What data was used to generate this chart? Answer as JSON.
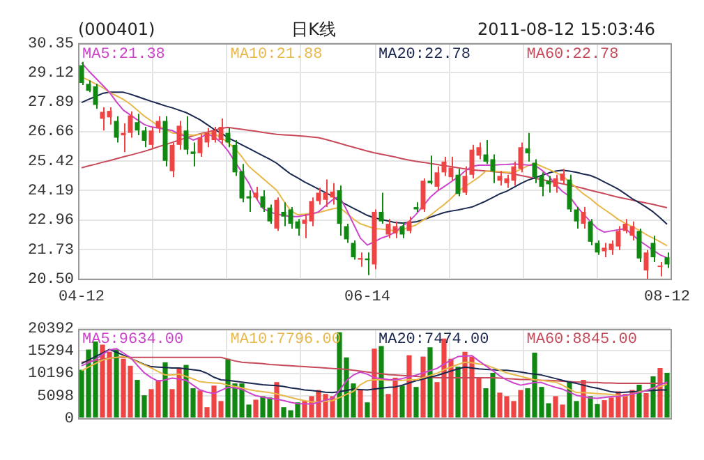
{
  "chart_data": [
    {
      "type": "candlestick",
      "title": "(000401)",
      "subtitle": "日K线",
      "annotations": [
        "2011-08-12 15:03:46"
      ],
      "categories": [
        "04-12",
        null,
        null,
        null,
        null,
        null,
        null,
        null,
        null,
        null,
        null,
        null,
        null,
        null,
        null,
        null,
        null,
        null,
        null,
        null,
        null,
        null,
        null,
        null,
        null,
        null,
        null,
        null,
        null,
        null,
        null,
        null,
        null,
        null,
        null,
        null,
        null,
        null,
        null,
        null,
        null,
        "06-14",
        null,
        null,
        null,
        null,
        null,
        null,
        null,
        null,
        null,
        null,
        null,
        null,
        null,
        null,
        null,
        null,
        null,
        null,
        null,
        null,
        null,
        null,
        null,
        null,
        null,
        null,
        null,
        null,
        null,
        null,
        null,
        null,
        null,
        null,
        null,
        null,
        null,
        null,
        null,
        null,
        null,
        null,
        "08-12"
      ],
      "ylim": [
        20.5,
        30.35
      ],
      "yticks": [
        {
          "value": 20.5,
          "label": "20.50"
        },
        21.73,
        22.96,
        24.19,
        25.42,
        26.66,
        27.89,
        29.12,
        30.35
      ],
      "grid": true,
      "legend": "top",
      "series": [
        {
          "colors": [
            "#118811",
            "#118811",
            "#118811",
            "#ee4444",
            "#ee4444",
            "#118811",
            "#ee4444",
            "#ee4444",
            "#118811",
            "#118811",
            "#ee4444",
            "#ee4444",
            "#118811",
            "#ee4444",
            "#ee4444",
            "#118811",
            "#118811",
            "#ee4444",
            "#ee4444",
            "#ee4444",
            "#ee4444",
            "#118811",
            "#118811",
            "#118811",
            "#118811",
            "#ee4444",
            "#118811",
            "#118811",
            "#ee4444",
            "#118811",
            "#118811",
            "#118811",
            "#ee4444",
            "#ee4444",
            "#ee4444",
            "#ee4444",
            "#ee4444",
            "#118811",
            "#118811",
            "#118811",
            "#ee4444",
            "#118811",
            "#ee4444",
            "#118811",
            "#ee4444",
            "#ee4444",
            "#118811",
            "#ee4444",
            "#118811",
            "#ee4444",
            "#118811",
            "#ee4444",
            "#ee4444",
            "#ee4444",
            "#118811",
            "#ee4444",
            "#ee4444",
            "#ee4444",
            "#118811",
            "#118811",
            "#ee4444",
            "#ee4444",
            "#ee4444",
            "#ee4444",
            "#118811",
            "#118811",
            "#118811",
            "#118811",
            "#ee4444",
            "#ee4444",
            "#118811",
            "#118811",
            "#ee4444",
            "#118811",
            "#118811",
            "#ee4444",
            "#ee4444",
            "#ee4444",
            "#ee4444",
            "#ee4444",
            "#118811",
            "#ee4444",
            "#118811",
            "#ee4444",
            "#118811"
          ],
          "ohlc": [
            [
              29.43,
              29.57,
              28.6,
              28.69
            ],
            [
              28.65,
              28.8,
              28.3,
              28.36
            ],
            [
              28.55,
              28.65,
              27.6,
              27.77
            ],
            [
              27.19,
              27.67,
              26.7,
              27.48
            ],
            [
              27.25,
              27.67,
              26.95,
              27.52
            ],
            [
              27.1,
              27.3,
              26.2,
              26.4
            ],
            [
              26.5,
              27.0,
              25.8,
              26.6
            ],
            [
              26.6,
              27.5,
              26.4,
              27.33
            ],
            [
              27.05,
              27.4,
              26.5,
              26.7
            ],
            [
              26.7,
              26.85,
              26.0,
              26.27
            ],
            [
              26.1,
              26.85,
              25.95,
              26.7
            ],
            [
              26.8,
              27.3,
              26.6,
              27.1
            ],
            [
              27.1,
              27.3,
              25.2,
              25.43
            ],
            [
              25.0,
              26.2,
              24.75,
              26.1
            ],
            [
              26.1,
              27.1,
              25.9,
              26.9
            ],
            [
              26.7,
              27.3,
              25.7,
              25.9
            ],
            [
              25.82,
              26.2,
              25.2,
              25.72
            ],
            [
              25.75,
              26.55,
              25.6,
              26.4
            ],
            [
              26.2,
              26.8,
              26.0,
              26.6
            ],
            [
              26.3,
              26.85,
              26.2,
              26.7
            ],
            [
              26.3,
              27.2,
              26.1,
              26.85
            ],
            [
              26.6,
              26.8,
              26.0,
              26.2
            ],
            [
              26.1,
              26.3,
              24.8,
              24.95
            ],
            [
              25.0,
              25.3,
              23.7,
              23.86
            ],
            [
              23.95,
              24.2,
              23.3,
              23.86
            ],
            [
              23.9,
              24.35,
              23.8,
              24.1
            ],
            [
              23.95,
              24.2,
              23.3,
              23.48
            ],
            [
              23.48,
              23.6,
              22.8,
              22.9
            ],
            [
              22.6,
              23.9,
              22.5,
              23.8
            ],
            [
              23.3,
              23.7,
              22.7,
              23.1
            ],
            [
              23.4,
              23.5,
              22.6,
              22.8
            ],
            [
              22.9,
              23.0,
              22.3,
              22.6
            ],
            [
              22.8,
              23.2,
              22.2,
              22.97
            ],
            [
              22.9,
              23.9,
              22.7,
              23.75
            ],
            [
              23.75,
              24.3,
              23.6,
              24.1
            ],
            [
              23.8,
              24.65,
              23.5,
              24.1
            ],
            [
              23.9,
              24.5,
              23.6,
              24.15
            ],
            [
              24.2,
              24.4,
              22.3,
              22.8
            ],
            [
              22.7,
              22.8,
              22.0,
              22.15
            ],
            [
              22.0,
              22.1,
              21.3,
              21.4
            ],
            [
              21.3,
              21.6,
              21.0,
              21.37
            ],
            [
              21.35,
              21.6,
              20.65,
              21.28
            ],
            [
              21.1,
              23.4,
              20.9,
              23.3
            ],
            [
              23.3,
              24.1,
              22.8,
              22.9
            ],
            [
              22.35,
              23.0,
              22.2,
              22.8
            ],
            [
              22.4,
              22.9,
              22.2,
              22.7
            ],
            [
              22.7,
              22.85,
              22.2,
              22.35
            ],
            [
              22.5,
              23.1,
              22.4,
              22.9
            ],
            [
              23.5,
              23.7,
              23.3,
              23.4
            ],
            [
              23.4,
              24.7,
              23.3,
              24.6
            ],
            [
              24.6,
              25.65,
              24.45,
              24.5
            ],
            [
              24.35,
              25.2,
              24.2,
              24.95
            ],
            [
              24.95,
              25.6,
              24.8,
              25.4
            ],
            [
              24.75,
              25.6,
              24.6,
              25.15
            ],
            [
              24.85,
              25.1,
              23.95,
              24.05
            ],
            [
              24.1,
              25.2,
              24.0,
              24.8
            ],
            [
              24.85,
              26.1,
              24.7,
              25.9
            ],
            [
              25.65,
              26.2,
              25.5,
              26.0
            ],
            [
              25.7,
              26.3,
              25.3,
              25.4
            ],
            [
              25.5,
              25.7,
              24.5,
              25.0
            ],
            [
              24.6,
              25.0,
              24.4,
              24.8
            ],
            [
              24.5,
              24.85,
              24.3,
              24.7
            ],
            [
              24.6,
              25.4,
              24.4,
              25.2
            ],
            [
              25.1,
              26.2,
              24.95,
              26.0
            ],
            [
              25.95,
              26.6,
              25.4,
              25.75
            ],
            [
              25.35,
              25.5,
              24.5,
              24.75
            ],
            [
              24.8,
              24.95,
              23.95,
              24.35
            ],
            [
              24.6,
              24.8,
              24.1,
              24.45
            ],
            [
              24.35,
              24.85,
              24.1,
              24.7
            ],
            [
              24.6,
              25.1,
              24.45,
              24.9
            ],
            [
              24.65,
              24.85,
              23.3,
              23.4
            ],
            [
              23.4,
              23.5,
              22.6,
              22.9
            ],
            [
              22.8,
              23.5,
              22.6,
              23.3
            ],
            [
              22.9,
              23.0,
              21.9,
              22.05
            ],
            [
              22.0,
              22.1,
              21.5,
              21.6
            ],
            [
              21.65,
              22.0,
              21.4,
              21.8
            ],
            [
              21.7,
              22.1,
              21.5,
              21.97
            ],
            [
              21.85,
              22.7,
              21.7,
              22.5
            ],
            [
              22.5,
              23.0,
              22.4,
              22.8
            ],
            [
              22.3,
              22.9,
              22.1,
              22.7
            ],
            [
              22.5,
              22.6,
              21.2,
              21.35
            ],
            [
              20.85,
              21.7,
              20.5,
              21.6
            ],
            [
              22.0,
              22.3,
              21.2,
              21.4
            ],
            [
              21.0,
              21.2,
              20.6,
              21.05
            ],
            [
              21.4,
              21.6,
              20.95,
              21.1
            ]
          ]
        },
        {
          "type": "line",
          "name": "MA5:21.38",
          "color": "#cc44cc",
          "values": [
            29.53,
            29.2,
            28.9,
            28.6,
            28.3,
            27.9,
            27.55,
            27.35,
            27.15,
            26.95,
            26.85,
            26.8,
            26.75,
            26.7,
            26.55,
            26.45,
            26.3,
            26.4,
            26.55,
            26.45,
            26.2,
            25.85,
            25.4,
            24.95,
            24.5,
            23.9,
            23.45,
            23.3,
            23.2,
            23.15,
            23.1,
            23.1,
            23.15,
            23.2,
            23.3,
            23.55,
            23.8,
            23.95,
            23.4,
            22.8,
            22.2,
            21.91,
            22.05,
            22.2,
            22.3,
            22.45,
            22.7,
            22.9,
            23.2,
            23.55,
            23.9,
            24.16,
            24.35,
            24.55,
            24.75,
            25.0,
            25.2,
            25.25,
            25.25,
            25.25,
            25.27,
            25.28,
            25.3,
            25.28,
            25.26,
            25.25,
            25.05,
            24.8,
            24.45,
            24.15,
            23.95,
            23.55,
            23.2,
            22.9,
            22.6,
            22.45,
            22.5,
            22.55,
            22.6,
            22.35,
            22.1,
            21.9,
            21.7,
            21.5,
            21.38
          ]
        },
        {
          "type": "line",
          "name": "MA10:21.88",
          "color": "#e8b84a",
          "values": [
            28.94,
            28.8,
            28.65,
            28.5,
            28.3,
            28.15,
            28.0,
            27.8,
            27.55,
            27.3,
            27.1,
            26.9,
            26.75,
            26.6,
            26.57,
            26.53,
            26.5,
            26.54,
            26.58,
            26.58,
            26.4,
            26.2,
            25.95,
            25.6,
            25.2,
            24.95,
            24.7,
            24.45,
            24.2,
            23.75,
            23.35,
            23.18,
            23.2,
            23.23,
            23.27,
            23.35,
            23.42,
            23.48,
            23.25,
            23.0,
            22.8,
            22.7,
            22.6,
            22.58,
            22.55,
            22.5,
            22.55,
            22.65,
            22.75,
            22.95,
            23.15,
            23.38,
            23.6,
            23.85,
            24.15,
            24.35,
            24.55,
            24.75,
            25.0,
            25.0,
            24.98,
            24.96,
            24.94,
            25.08,
            25.22,
            25.33,
            25.2,
            25.08,
            24.95,
            24.8,
            24.55,
            24.3,
            24.05,
            23.85,
            23.6,
            23.4,
            23.2,
            22.98,
            22.82,
            22.68,
            22.53,
            22.35,
            22.2,
            22.05,
            21.88
          ]
        },
        {
          "type": "line",
          "name": "MA20:22.78",
          "color": "#1a2850",
          "values": [
            27.87,
            28.0,
            28.12,
            28.25,
            28.3,
            28.3,
            28.3,
            28.22,
            28.12,
            28.02,
            27.92,
            27.83,
            27.73,
            27.65,
            27.55,
            27.45,
            27.3,
            27.15,
            26.95,
            26.75,
            26.6,
            26.4,
            26.25,
            26.1,
            25.95,
            25.8,
            25.65,
            25.5,
            25.33,
            25.1,
            24.88,
            24.72,
            24.55,
            24.4,
            24.25,
            24.1,
            23.95,
            23.75,
            23.6,
            23.45,
            23.3,
            23.15,
            23.05,
            22.98,
            22.92,
            22.85,
            22.83,
            22.85,
            22.88,
            22.97,
            23.07,
            23.17,
            23.27,
            23.33,
            23.38,
            23.44,
            23.5,
            23.62,
            23.75,
            23.9,
            24.05,
            24.16,
            24.32,
            24.48,
            24.62,
            24.72,
            24.82,
            24.92,
            25.0,
            25.04,
            25.0,
            24.95,
            24.88,
            24.82,
            24.7,
            24.55,
            24.4,
            24.25,
            24.05,
            23.85,
            23.68,
            23.5,
            23.3,
            23.05,
            22.78
          ]
        },
        {
          "type": "line",
          "name": "MA60:22.78",
          "color": "#c84a5a",
          "values": [
            25.14,
            25.22,
            25.29,
            25.37,
            25.44,
            25.52,
            25.6,
            25.67,
            25.75,
            25.83,
            25.92,
            26.02,
            26.11,
            26.2,
            26.3,
            26.39,
            26.48,
            26.56,
            26.63,
            26.71,
            26.79,
            26.83,
            26.79,
            26.75,
            26.71,
            26.67,
            26.62,
            26.58,
            26.54,
            26.52,
            26.5,
            26.48,
            26.46,
            26.43,
            26.4,
            26.33,
            26.25,
            26.17,
            26.08,
            26.0,
            25.92,
            25.84,
            25.77,
            25.71,
            25.65,
            25.59,
            25.52,
            25.46,
            25.41,
            25.37,
            25.32,
            25.28,
            25.23,
            25.19,
            25.14,
            25.1,
            25.05,
            25.03,
            25.01,
            24.98,
            24.96,
            24.94,
            24.88,
            24.82,
            24.76,
            24.7,
            24.65,
            24.59,
            24.53,
            24.47,
            24.41,
            24.35,
            24.28,
            24.2,
            24.13,
            24.06,
            23.98,
            23.91,
            23.85,
            23.79,
            23.73,
            23.67,
            23.61,
            23.54,
            23.47
          ]
        }
      ]
    },
    {
      "type": "bar",
      "tick_labels": "y",
      "categories": [
        null,
        null,
        null,
        null,
        null,
        null,
        null,
        null,
        null,
        null,
        null,
        null,
        null,
        null,
        null,
        null,
        null,
        null,
        null,
        null,
        null,
        null,
        null,
        null,
        null,
        null,
        null,
        null,
        null,
        null,
        null,
        null,
        null,
        null,
        null,
        null,
        null,
        null,
        null,
        null,
        null,
        null,
        null,
        null,
        null,
        null,
        null,
        null,
        null,
        null,
        null,
        null,
        null,
        null,
        null,
        null,
        null,
        null,
        null,
        null,
        null,
        null,
        null,
        null,
        null,
        null,
        null,
        null,
        null,
        null,
        null,
        null,
        null,
        null,
        null,
        null,
        null,
        null,
        null,
        null,
        null,
        null,
        null,
        null,
        null
      ],
      "ylim": [
        0,
        20392
      ],
      "yticks": [
        0,
        5098,
        10196,
        15294,
        20392
      ],
      "grid": true,
      "legend": "top",
      "series": [
        {
          "colors": [
            "#118811",
            "#118811",
            "#118811",
            "#ee4444",
            "#ee4444",
            "#118811",
            "#ee4444",
            "#ee4444",
            "#118811",
            "#118811",
            "#ee4444",
            "#ee4444",
            "#118811",
            "#ee4444",
            "#ee4444",
            "#118811",
            "#118811",
            "#ee4444",
            "#ee4444",
            "#ee4444",
            "#ee4444",
            "#118811",
            "#118811",
            "#118811",
            "#118811",
            "#ee4444",
            "#118811",
            "#118811",
            "#ee4444",
            "#118811",
            "#118811",
            "#118811",
            "#ee4444",
            "#ee4444",
            "#ee4444",
            "#ee4444",
            "#ee4444",
            "#118811",
            "#118811",
            "#118811",
            "#ee4444",
            "#118811",
            "#ee4444",
            "#118811",
            "#ee4444",
            "#ee4444",
            "#118811",
            "#ee4444",
            "#118811",
            "#ee4444",
            "#118811",
            "#ee4444",
            "#ee4444",
            "#ee4444",
            "#118811",
            "#ee4444",
            "#ee4444",
            "#ee4444",
            "#118811",
            "#118811",
            "#ee4444",
            "#ee4444",
            "#ee4444",
            "#ee4444",
            "#118811",
            "#118811",
            "#118811",
            "#118811",
            "#ee4444",
            "#ee4444",
            "#118811",
            "#118811",
            "#ee4444",
            "#118811",
            "#118811",
            "#ee4444",
            "#ee4444",
            "#ee4444",
            "#ee4444",
            "#ee4444",
            "#118811",
            "#ee4444",
            "#118811",
            "#ee4444",
            "#118811"
          ],
          "values": [
            11000,
            15600,
            17400,
            16700,
            15100,
            15600,
            13500,
            11900,
            8700,
            5200,
            6600,
            8700,
            12700,
            6600,
            11400,
            12100,
            6800,
            6300,
            2500,
            7400,
            3900,
            13500,
            7900,
            7900,
            3100,
            4200,
            5000,
            4700,
            8200,
            2500,
            1800,
            3600,
            3900,
            5000,
            6400,
            5500,
            5000,
            19500,
            13800,
            7900,
            6400,
            3600,
            15800,
            16400,
            5500,
            9200,
            7400,
            14300,
            7100,
            14000,
            16100,
            8200,
            18100,
            13500,
            11700,
            15100,
            14000,
            9200,
            6800,
            10300,
            5800,
            5000,
            3900,
            6400,
            6800,
            14900,
            7100,
            3400,
            5000,
            3100,
            8200,
            3900,
            8700,
            5000,
            3200,
            4100,
            4700,
            6100,
            5500,
            6400,
            7600,
            5700,
            9500,
            11400,
            10300
          ]
        },
        {
          "type": "line",
          "name": "MA5:9634.00",
          "color": "#cc44cc",
          "values": [
            11900,
            12600,
            13300,
            14500,
            15500,
            15800,
            14800,
            13800,
            12000,
            10300,
            9200,
            8400,
            8700,
            9100,
            8900,
            8600,
            7500,
            6400,
            5900,
            5600,
            6300,
            7000,
            6900,
            6600,
            5800,
            5100,
            4800,
            4500,
            4300,
            4000,
            3600,
            3300,
            3300,
            3200,
            3600,
            4100,
            4500,
            6300,
            8500,
            9800,
            10500,
            10000,
            9200,
            9000,
            8800,
            8700,
            9000,
            9400,
            9800,
            10300,
            10800,
            11300,
            12300,
            13200,
            14000,
            14100,
            14200,
            13000,
            11900,
            10800,
            9600,
            8700,
            8000,
            7500,
            7800,
            8100,
            8100,
            7500,
            7000,
            6600,
            5900,
            5200,
            4900,
            4600,
            4500,
            4700,
            4900,
            5000,
            5200,
            5500,
            5800,
            6300,
            6800,
            7600,
            8200
          ]
        },
        {
          "type": "line",
          "name": "MA10:7796.00",
          "color": "#e8b84a",
          "values": [
            10800,
            11600,
            12400,
            13200,
            13600,
            13800,
            14000,
            13600,
            12800,
            12100,
            11400,
            10600,
            9800,
            9800,
            10000,
            9500,
            8900,
            8300,
            8100,
            8000,
            7900,
            7500,
            7200,
            6900,
            6500,
            6200,
            6000,
            5800,
            5500,
            5100,
            4700,
            4300,
            4000,
            3700,
            3700,
            3800,
            4000,
            4700,
            5400,
            6100,
            7600,
            8500,
            8700,
            8700,
            8600,
            8600,
            8600,
            8700,
            8700,
            9200,
            9700,
            10200,
            11000,
            11600,
            12200,
            12700,
            12600,
            12300,
            12100,
            11500,
            10900,
            10300,
            9900,
            9500,
            9100,
            8700,
            8600,
            8400,
            8200,
            7500,
            6600,
            5800,
            5800,
            5700,
            5600,
            5500,
            5400,
            5200,
            5000,
            5500,
            6000,
            6300,
            6800,
            7200,
            7700
          ]
        },
        {
          "type": "line",
          "name": "MA20:7474.00",
          "color": "#1a2850",
          "values": [
            12400,
            13200,
            14000,
            14800,
            15600,
            15000,
            14300,
            13600,
            12900,
            12200,
            11700,
            11600,
            11500,
            11400,
            11400,
            11200,
            11000,
            10800,
            10200,
            9300,
            8700,
            8600,
            8400,
            8200,
            8000,
            7800,
            7600,
            7500,
            7400,
            7200,
            6900,
            6700,
            6400,
            6300,
            6100,
            5900,
            5800,
            6000,
            6300,
            6600,
            6500,
            6400,
            6600,
            6800,
            7000,
            7100,
            7500,
            8000,
            8500,
            8900,
            9300,
            9700,
            10200,
            10700,
            11200,
            11600,
            11400,
            11200,
            11100,
            11000,
            10900,
            10900,
            10700,
            10500,
            10200,
            10000,
            9800,
            9400,
            9000,
            8600,
            8200,
            7900,
            7500,
            7100,
            6800,
            6400,
            6000,
            5800,
            5900,
            6000,
            6100,
            6200,
            6300,
            6400,
            6400
          ]
        },
        {
          "type": "line",
          "name": "MA60:8845.00",
          "color": "#c84a5a",
          "values": [
            12700,
            12900,
            13100,
            13400,
            13600,
            13800,
            13800,
            13800,
            13800,
            13800,
            13800,
            13800,
            13800,
            13800,
            13800,
            13800,
            13800,
            13800,
            13800,
            13800,
            13800,
            13400,
            13000,
            12700,
            12600,
            12500,
            12400,
            12200,
            12100,
            12000,
            11900,
            11800,
            11700,
            11600,
            11500,
            11400,
            11300,
            11200,
            11100,
            10900,
            10700,
            10500,
            10300,
            10100,
            9900,
            9800,
            9700,
            9600,
            9500,
            9400,
            9300,
            9200,
            9200,
            9200,
            9200,
            9200,
            9200,
            9200,
            9200,
            9200,
            9100,
            9000,
            8900,
            8800,
            8800,
            8700,
            8600,
            8600,
            8500,
            8400,
            8300,
            8200,
            8200,
            8100,
            8100,
            8000,
            8000,
            7900,
            7900,
            7900,
            7900,
            7900,
            7900,
            7900,
            7900
          ]
        }
      ]
    }
  ]
}
